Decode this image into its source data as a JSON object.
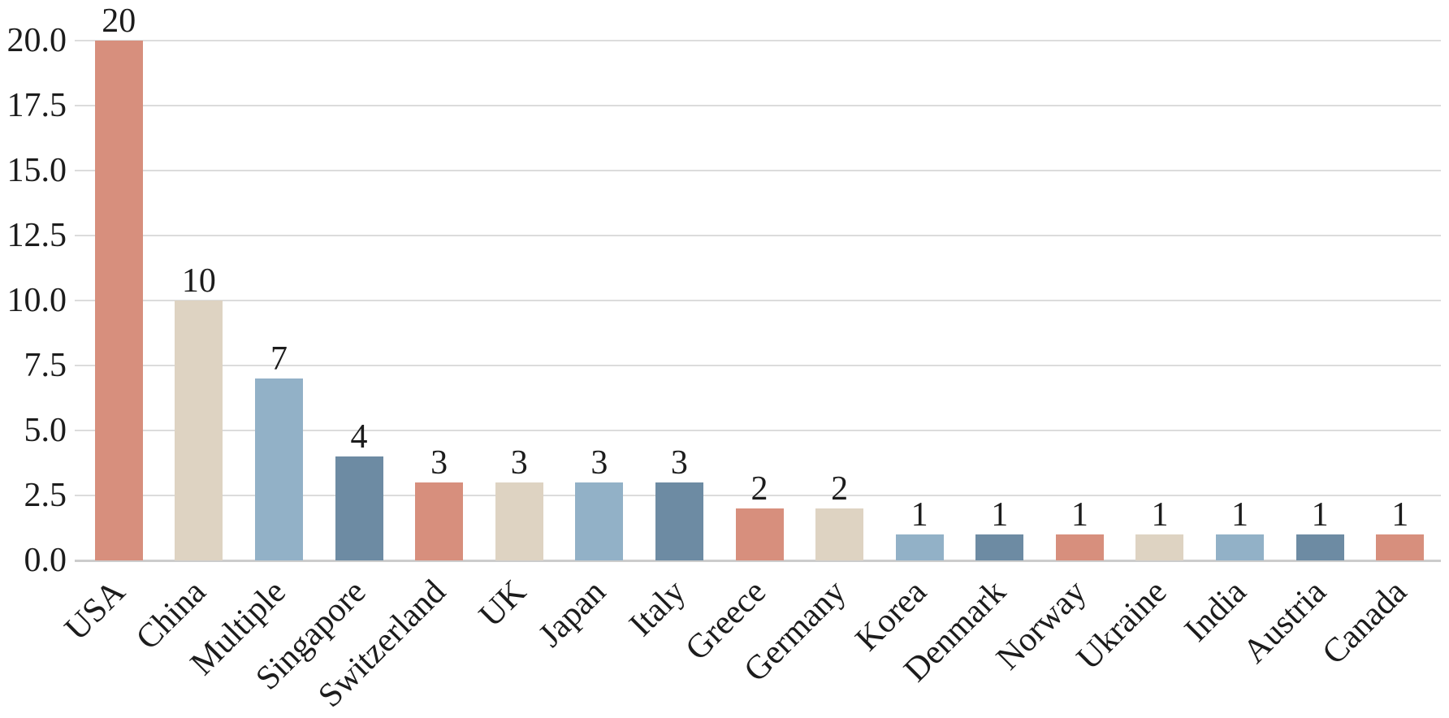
{
  "chart_data": {
    "type": "bar",
    "title": "",
    "xlabel": "",
    "ylabel": "",
    "categories": [
      "USA",
      "China",
      "Multiple",
      "Singapore",
      "Switzerland",
      "UK",
      "Japan",
      "Italy",
      "Greece",
      "Germany",
      "Korea",
      "Denmark",
      "Norway",
      "Ukraine",
      "India",
      "Austria",
      "Canada"
    ],
    "values": [
      20,
      10,
      7,
      4,
      3,
      3,
      3,
      3,
      2,
      2,
      1,
      1,
      1,
      1,
      1,
      1,
      1
    ],
    "bar_value_labels": [
      "20",
      "10",
      "7",
      "4",
      "3",
      "3",
      "3",
      "3",
      "2",
      "2",
      "1",
      "1",
      "1",
      "1",
      "1",
      "1",
      "1"
    ],
    "ylim": [
      0,
      20
    ],
    "ytick_values": [
      0,
      2.5,
      5,
      7.5,
      10,
      12.5,
      15,
      17.5,
      20
    ],
    "ytick_labels": [
      "0.0",
      "2.5",
      "5.0",
      "7.5",
      "10.0",
      "12.5",
      "15.0",
      "17.5",
      "20.0"
    ],
    "grid": true,
    "legend": null,
    "xtick_rotation_degrees": 45,
    "bar_color_cycle": [
      "#d78f7d",
      "#ded3c2",
      "#92b1c7",
      "#6d8ba3"
    ]
  },
  "style": {
    "background_color": "#ffffff",
    "grid_color": "#dcdcdc",
    "axis_line_color": "#cccccc",
    "text_color": "#1c1c1c"
  }
}
